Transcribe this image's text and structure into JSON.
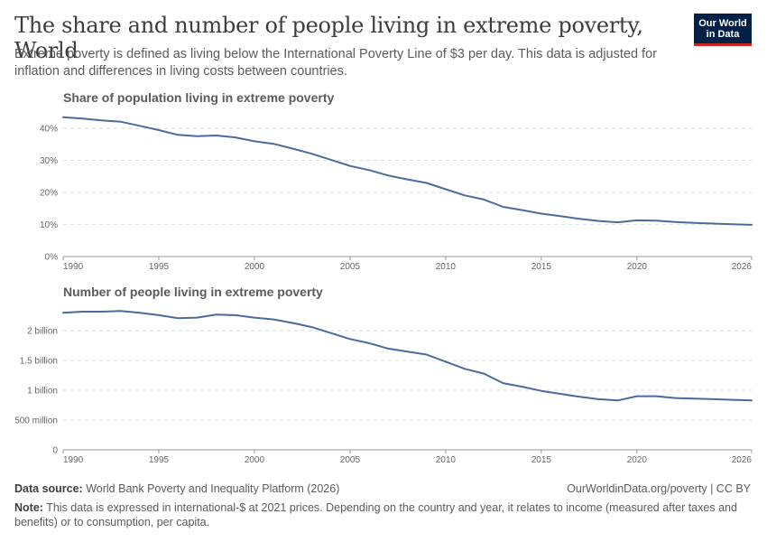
{
  "header": {
    "title": "The share and number of people living in extreme poverty, World",
    "subtitle": "Extreme poverty is defined as living below the International Poverty Line of $3 per day. This data is adjusted for inflation and differences in living costs between countries.",
    "logo_line1": "Our World",
    "logo_line2": "in Data"
  },
  "footer": {
    "source_label": "Data source:",
    "source_text": "World Bank Poverty and Inequality Platform (2026)",
    "url": "OurWorldinData.org/poverty | CC BY",
    "note_label": "Note:",
    "note_text": "This data is expressed in international-$ at 2021 prices. Depending on the country and year, it relates to income (measured after taxes and benefits) or to consumption, per capita."
  },
  "colors": {
    "line": "#4c6a9c",
    "grid": "#dddddd",
    "logo_bg": "#002147",
    "logo_accent": "#ce261e"
  },
  "chart_data": [
    {
      "type": "line",
      "title": "Share of population living in extreme poverty",
      "x_ticks": [
        1990,
        1995,
        2000,
        2005,
        2010,
        2015,
        2020,
        2026
      ],
      "y_ticks": [
        {
          "v": 0,
          "label": "0%"
        },
        {
          "v": 10,
          "label": "10%"
        },
        {
          "v": 20,
          "label": "20%"
        },
        {
          "v": 30,
          "label": "30%"
        },
        {
          "v": 40,
          "label": "40%"
        }
      ],
      "xlim": [
        1990,
        2026
      ],
      "ylim": [
        0,
        44
      ],
      "grid": true,
      "x": [
        1990,
        1991,
        1992,
        1993,
        1994,
        1995,
        1996,
        1997,
        1998,
        1999,
        2000,
        2001,
        2002,
        2003,
        2004,
        2005,
        2006,
        2007,
        2008,
        2009,
        2010,
        2011,
        2012,
        2013,
        2014,
        2015,
        2016,
        2017,
        2018,
        2019,
        2020,
        2021,
        2022,
        2023,
        2024,
        2025,
        2026
      ],
      "series": [
        {
          "values": [
            43.5,
            43.1,
            42.5,
            42.1,
            40.8,
            39.5,
            38.0,
            37.6,
            37.8,
            37.2,
            36.0,
            35.2,
            33.7,
            32.1,
            30.2,
            28.3,
            27.0,
            25.3,
            24.1,
            23.0,
            21.0,
            19.1,
            17.8,
            15.5,
            14.5,
            13.4,
            12.6,
            11.8,
            11.1,
            10.7,
            11.3,
            11.2,
            10.8,
            10.5,
            10.3,
            10.1,
            9.9
          ]
        }
      ]
    },
    {
      "type": "line",
      "title": "Number of people living in extreme poverty",
      "x_ticks": [
        1990,
        1995,
        2000,
        2005,
        2010,
        2015,
        2020,
        2026
      ],
      "y_ticks": [
        {
          "v": 0,
          "label": "0"
        },
        {
          "v": 0.5,
          "label": "500 million"
        },
        {
          "v": 1.0,
          "label": "1 billion"
        },
        {
          "v": 1.5,
          "label": "1.5 billion"
        },
        {
          "v": 2.0,
          "label": "2 billion"
        }
      ],
      "xlim": [
        1990,
        2026
      ],
      "ylim": [
        0,
        2.35
      ],
      "grid": true,
      "x": [
        1990,
        1991,
        1992,
        1993,
        1994,
        1995,
        1996,
        1997,
        1998,
        1999,
        2000,
        2001,
        2002,
        2003,
        2004,
        2005,
        2006,
        2007,
        2008,
        2009,
        2010,
        2011,
        2012,
        2013,
        2014,
        2015,
        2016,
        2017,
        2018,
        2019,
        2020,
        2021,
        2022,
        2023,
        2024,
        2025,
        2026
      ],
      "series": [
        {
          "values": [
            2.3,
            2.32,
            2.32,
            2.33,
            2.3,
            2.26,
            2.21,
            2.22,
            2.27,
            2.26,
            2.22,
            2.19,
            2.13,
            2.06,
            1.96,
            1.86,
            1.79,
            1.7,
            1.65,
            1.6,
            1.48,
            1.36,
            1.28,
            1.12,
            1.06,
            0.99,
            0.94,
            0.89,
            0.85,
            0.83,
            0.9,
            0.9,
            0.87,
            0.86,
            0.85,
            0.84,
            0.83
          ]
        }
      ]
    }
  ]
}
